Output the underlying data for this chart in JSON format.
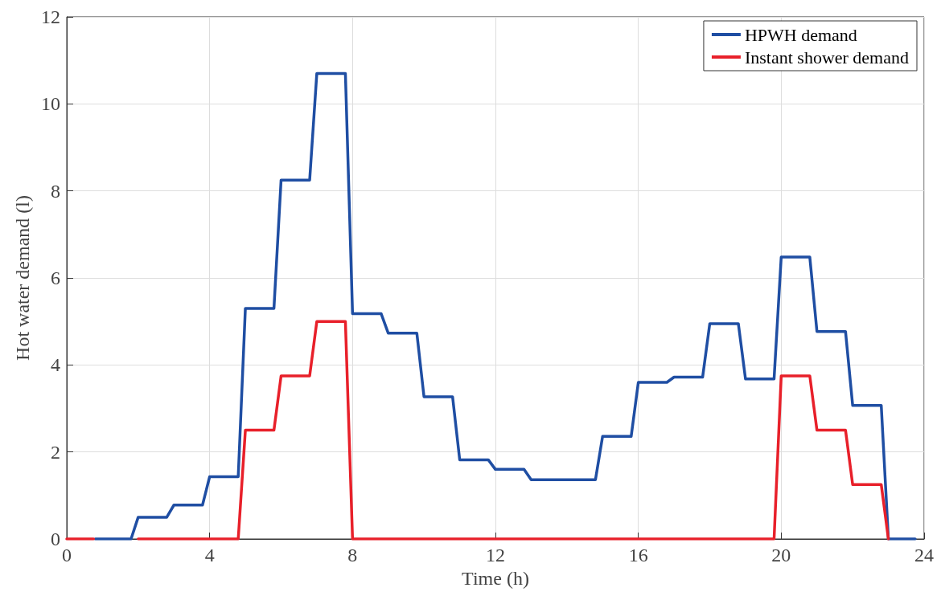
{
  "chart_data": {
    "type": "line",
    "xlabel": "Time (h)",
    "ylabel": "Hot water demand (l)",
    "xlim": [
      0,
      24
    ],
    "xticks": [
      0,
      4,
      8,
      12,
      16,
      20,
      24
    ],
    "ylim": [
      0,
      12
    ],
    "yticks": [
      0,
      2,
      4,
      6,
      8,
      10,
      12
    ],
    "grid": true,
    "legend": "top right",
    "marker": "none",
    "line_style": "solid",
    "series": [
      {
        "name": "HPWH demand",
        "color": "#1f4ea3",
        "x": [
          0.8,
          1,
          1.8,
          2,
          2.8,
          3,
          3.8,
          4,
          4.8,
          5,
          5.8,
          6,
          6.8,
          7,
          7.8,
          8,
          8.8,
          9,
          9.8,
          10,
          10.8,
          11,
          11.8,
          12,
          12.8,
          13,
          13.8,
          14,
          14.8,
          15,
          15.8,
          16,
          16.8,
          17,
          17.8,
          18,
          18.8,
          19,
          19.8,
          20,
          20.8,
          21,
          21.8,
          22,
          22.8,
          23,
          23.75
        ],
        "values": [
          0,
          0,
          0,
          0.5,
          0.5,
          0.78,
          0.78,
          1.43,
          1.43,
          5.3,
          5.3,
          8.25,
          8.25,
          10.7,
          10.7,
          5.18,
          5.18,
          4.73,
          4.73,
          3.27,
          3.27,
          1.82,
          1.82,
          1.6,
          1.6,
          1.36,
          1.36,
          1.36,
          1.36,
          2.36,
          2.36,
          3.6,
          3.6,
          3.72,
          3.72,
          4.95,
          4.95,
          3.68,
          3.68,
          6.48,
          6.48,
          4.77,
          4.77,
          3.07,
          3.07,
          0,
          0
        ]
      },
      {
        "name": "Instant shower demand",
        "color": "#e8202a",
        "x": [
          0,
          0.75,
          1.3,
          2,
          4.8,
          5,
          5.8,
          6,
          6.8,
          7,
          7.8,
          8,
          19.8,
          20,
          20.8,
          21,
          21.8,
          22,
          22.8,
          23
        ],
        "values": [
          0,
          0,
          null,
          0,
          0,
          2.5,
          2.5,
          3.75,
          3.75,
          5,
          5,
          0,
          0,
          3.75,
          3.75,
          2.5,
          2.5,
          1.25,
          1.25,
          0
        ]
      }
    ]
  }
}
